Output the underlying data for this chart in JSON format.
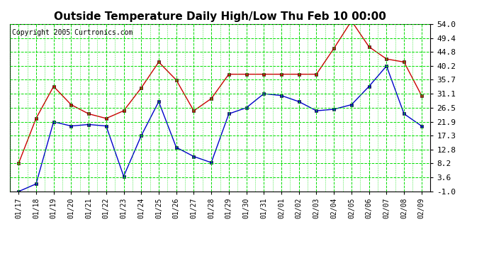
{
  "title": "Outside Temperature Daily High/Low Thu Feb 10 00:00",
  "copyright": "Copyright 2005 Curtronics.com",
  "x_labels": [
    "01/17",
    "01/18",
    "01/19",
    "01/20",
    "01/21",
    "01/22",
    "01/23",
    "01/24",
    "01/25",
    "01/26",
    "01/27",
    "01/28",
    "01/29",
    "01/30",
    "01/31",
    "02/01",
    "02/02",
    "02/03",
    "02/04",
    "02/05",
    "02/06",
    "02/07",
    "02/08",
    "02/09"
  ],
  "high_values": [
    8.2,
    23.0,
    33.5,
    27.5,
    24.5,
    23.0,
    25.5,
    33.0,
    41.5,
    35.6,
    25.5,
    29.5,
    37.5,
    37.5,
    37.5,
    37.5,
    37.5,
    37.5,
    46.0,
    55.0,
    46.5,
    42.5,
    41.5,
    30.5
  ],
  "low_values": [
    -1.0,
    1.5,
    21.9,
    20.5,
    21.0,
    20.5,
    4.0,
    17.3,
    28.5,
    13.5,
    10.5,
    8.5,
    24.5,
    26.5,
    31.1,
    30.5,
    28.5,
    25.5,
    26.0,
    27.5,
    33.5,
    40.2,
    24.5,
    20.5
  ],
  "high_color": "#cc0000",
  "low_color": "#0000cc",
  "marker": "s",
  "marker_size": 3,
  "background_color": "#ffffff",
  "plot_bg_color": "#ffffff",
  "grid_color": "#00dd00",
  "grid_minor_color": "#00dd00",
  "title_fontsize": 11,
  "y_ticks": [
    -1.0,
    3.6,
    8.2,
    12.8,
    17.3,
    21.9,
    26.5,
    31.1,
    35.7,
    40.2,
    44.8,
    49.4,
    54.0
  ],
  "ylim": [
    -1.0,
    54.0
  ],
  "xlabel_fontsize": 7,
  "ylabel_fontsize": 8,
  "copyright_fontsize": 7
}
